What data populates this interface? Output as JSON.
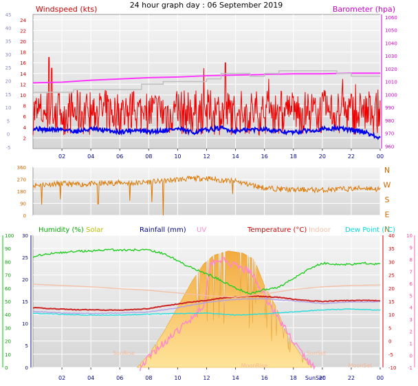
{
  "header": {
    "title": "24 hour graph day : 06 September 2019"
  },
  "chart_data": [
    {
      "type": "line",
      "name": "wind-baro",
      "left_label": "Windspeed (kts)",
      "right_label": "Barometer (hpa)",
      "left_ticks_gray": [
        -5,
        0,
        5,
        10,
        15,
        20,
        25,
        30,
        35,
        40,
        45
      ],
      "left_ticks_red": [
        2,
        4,
        6,
        8,
        10,
        12,
        14,
        16,
        18,
        20,
        22,
        24
      ],
      "right_ticks": [
        960,
        970,
        980,
        990,
        1000,
        1010,
        1020,
        1030,
        1040,
        1050,
        1060
      ],
      "x_ticks": [
        "02",
        "04",
        "06",
        "08",
        "10",
        "12",
        "14",
        "16",
        "18",
        "20",
        "22",
        "00"
      ],
      "x_range": [
        0,
        24
      ],
      "wind_range": [
        0,
        25
      ],
      "baro_range": [
        958,
        1062
      ],
      "series": [
        {
          "name": "Barometer",
          "axis": "baro",
          "color": "#ff33ff",
          "points": [
            [
              0,
              1009
            ],
            [
              2,
              1009.5
            ],
            [
              4,
              1011
            ],
            [
              6,
              1012
            ],
            [
              8,
              1013
            ],
            [
              10,
              1013.5
            ],
            [
              12,
              1014.5
            ],
            [
              14,
              1015
            ],
            [
              16,
              1015.5
            ],
            [
              18,
              1016
            ],
            [
              20,
              1016
            ],
            [
              22,
              1016.5
            ],
            [
              24,
              1016.5
            ]
          ]
        },
        {
          "name": "Gust",
          "axis": "wind",
          "color": "#c0c0c0",
          "points": [
            [
              0,
              10.5
            ],
            [
              2,
              10.5
            ],
            [
              2.8,
              11
            ],
            [
              4,
              11
            ],
            [
              6,
              11
            ],
            [
              7.5,
              12
            ],
            [
              9,
              12.5
            ],
            [
              11,
              12.5
            ],
            [
              12,
              13
            ],
            [
              13,
              14
            ],
            [
              14,
              14
            ],
            [
              15,
              13.5
            ],
            [
              16,
              14
            ],
            [
              17,
              14.5
            ],
            [
              19,
              14.5
            ],
            [
              21,
              14
            ],
            [
              22,
              13.5
            ],
            [
              24,
              13.5
            ]
          ]
        },
        {
          "name": "Wind average",
          "axis": "wind",
          "color": "#0000ee",
          "points": [
            [
              0,
              3.8
            ],
            [
              1,
              3.5
            ],
            [
              2,
              3.6
            ],
            [
              3,
              3.2
            ],
            [
              4,
              3.6
            ],
            [
              5,
              3.4
            ],
            [
              6,
              3.1
            ],
            [
              7,
              3.5
            ],
            [
              8,
              3.1
            ],
            [
              9,
              3.4
            ],
            [
              10,
              3.7
            ],
            [
              11,
              3.0
            ],
            [
              12,
              3.5
            ],
            [
              13,
              3.8
            ],
            [
              14,
              3.3
            ],
            [
              15,
              3.5
            ],
            [
              16,
              3.7
            ],
            [
              17,
              3.2
            ],
            [
              18,
              3.0
            ],
            [
              19,
              3.4
            ],
            [
              20,
              3.6
            ],
            [
              21,
              3.8
            ],
            [
              22,
              3.5
            ],
            [
              23,
              3.1
            ],
            [
              24,
              1.8
            ]
          ]
        }
      ],
      "wind_band": {
        "name": "Windspeed",
        "color": "#ee0000",
        "low": 2.5,
        "high": 11,
        "spikes": [
          [
            1.1,
            17
          ],
          [
            1.3,
            15
          ],
          [
            11.8,
            15
          ],
          [
            13.3,
            16
          ],
          [
            16.3,
            13
          ],
          [
            21.4,
            13
          ],
          [
            22.3,
            12
          ]
        ]
      }
    },
    {
      "type": "scatter",
      "name": "wind-direction",
      "y_ticks": [
        "0",
        "90",
        "180",
        "270",
        "360"
      ],
      "compass": [
        "N",
        "W",
        "S",
        "E",
        "N"
      ],
      "y_range": [
        0,
        360
      ],
      "color": "#dd7700",
      "points": [
        [
          0,
          225
        ],
        [
          1,
          232
        ],
        [
          2,
          238
        ],
        [
          3,
          230
        ],
        [
          4,
          235
        ],
        [
          5,
          240
        ],
        [
          6,
          245
        ],
        [
          7,
          240
        ],
        [
          8,
          250
        ],
        [
          9,
          255
        ],
        [
          10,
          268
        ],
        [
          11,
          275
        ],
        [
          12,
          278
        ],
        [
          13,
          262
        ],
        [
          14,
          255
        ],
        [
          15,
          230
        ],
        [
          16,
          205
        ],
        [
          17,
          198
        ],
        [
          18,
          190
        ],
        [
          19,
          192
        ],
        [
          20,
          188
        ],
        [
          21,
          195
        ],
        [
          22,
          198
        ],
        [
          23,
          205
        ],
        [
          24,
          192
        ]
      ],
      "outliers": [
        [
          0.6,
          80
        ],
        [
          1.9,
          120
        ],
        [
          4.5,
          85
        ],
        [
          6.7,
          110
        ],
        [
          8.2,
          100
        ],
        [
          9.0,
          0
        ],
        [
          13.8,
          160
        ]
      ]
    },
    {
      "type": "line",
      "name": "climate",
      "legend": [
        {
          "label": "Humidity (%)",
          "color": "#00aa00"
        },
        {
          "label": "Solar",
          "color": "#bbbb00"
        },
        {
          "label": "Rainfall (mm)",
          "color": "#000088"
        },
        {
          "label": "UV",
          "color": "#ff88cc"
        },
        {
          "label": "Temperature (°C)",
          "color": "#cc0000"
        },
        {
          "label": "Indoor",
          "color": "#f3c0a8"
        },
        {
          "label": "Dew Point (°C)",
          "color": "#00dddd"
        }
      ],
      "left_ticks_hum": [
        0,
        10,
        20,
        30,
        40,
        50,
        60,
        70,
        80,
        90,
        100
      ],
      "left_ticks_rain": [
        0,
        5,
        10,
        15,
        20,
        25,
        30
      ],
      "right_ticks_temp": [
        -10,
        -5,
        0,
        5,
        10,
        15,
        20,
        25,
        30,
        35,
        40
      ],
      "right_ticks_uv": [
        -1,
        0,
        1,
        2,
        3,
        4,
        5,
        6,
        7,
        8,
        9,
        10
      ],
      "x_ticks": [
        "02",
        "04",
        "06",
        "08",
        "10",
        "12",
        "14",
        "16",
        "18",
        "20",
        "22",
        "00"
      ],
      "x_range": [
        0,
        24
      ],
      "temp_range": [
        -10,
        40
      ],
      "hum_range": [
        0,
        100
      ],
      "annotations": [
        "SunRise",
        "SunSet",
        "MoonSet",
        "MoonRise",
        "SunSet"
      ],
      "series": [
        {
          "name": "Humidity",
          "axis": "hum",
          "color": "#22cc22",
          "points": [
            [
              0,
              84
            ],
            [
              1,
              86
            ],
            [
              2,
              87
            ],
            [
              3,
              88
            ],
            [
              4,
              88
            ],
            [
              5,
              89
            ],
            [
              6,
              89
            ],
            [
              7,
              89
            ],
            [
              8,
              89
            ],
            [
              9,
              86
            ],
            [
              10,
              81
            ],
            [
              11,
              75
            ],
            [
              12,
              71
            ],
            [
              13,
              66
            ],
            [
              14,
              60
            ],
            [
              15,
              56
            ],
            [
              16,
              59
            ],
            [
              17,
              61
            ],
            [
              18,
              67
            ],
            [
              19,
              74
            ],
            [
              20,
              79
            ],
            [
              21,
              78
            ],
            [
              22,
              78
            ],
            [
              23,
              79
            ],
            [
              24,
              78
            ]
          ]
        },
        {
          "name": "Temperature",
          "axis": "temp",
          "color": "#cc2222",
          "points": [
            [
              0,
              12.6
            ],
            [
              1,
              12.3
            ],
            [
              2,
              12.1
            ],
            [
              3,
              11.8
            ],
            [
              4,
              11.8
            ],
            [
              5,
              11.7
            ],
            [
              6,
              11.7
            ],
            [
              7,
              11.9
            ],
            [
              8,
              12.3
            ],
            [
              9,
              13.2
            ],
            [
              10,
              14.0
            ],
            [
              11,
              14.8
            ],
            [
              12,
              15.4
            ],
            [
              13,
              16.2
            ],
            [
              14,
              16.6
            ],
            [
              15,
              17.0
            ],
            [
              16,
              16.8
            ],
            [
              17,
              16.5
            ],
            [
              18,
              15.8
            ],
            [
              19,
              15.3
            ],
            [
              20,
              15.0
            ],
            [
              21,
              15.2
            ],
            [
              22,
              15.3
            ],
            [
              23,
              15.4
            ],
            [
              24,
              15.2
            ]
          ]
        },
        {
          "name": "Indoor",
          "axis": "temp",
          "color": "#f3c0a8",
          "points": [
            [
              0,
              21.5
            ],
            [
              2,
              21
            ],
            [
              4,
              20.5
            ],
            [
              6,
              19.8
            ],
            [
              8,
              19.2
            ],
            [
              10,
              18.2
            ],
            [
              12,
              17.2
            ],
            [
              14,
              16.6
            ],
            [
              16,
              17.8
            ],
            [
              18,
              19.5
            ],
            [
              20,
              20.5
            ],
            [
              22,
              21
            ],
            [
              24,
              21.2
            ]
          ]
        },
        {
          "name": "Dew Point",
          "axis": "temp",
          "color": "#22dddd",
          "points": [
            [
              0,
              10.5
            ],
            [
              2,
              10.1
            ],
            [
              4,
              9.8
            ],
            [
              6,
              9.8
            ],
            [
              8,
              10.2
            ],
            [
              10,
              10.4
            ],
            [
              12,
              10.6
            ],
            [
              14,
              9.8
            ],
            [
              16,
              10.3
            ],
            [
              18,
              11.0
            ],
            [
              20,
              11.8
            ],
            [
              22,
              12.1
            ],
            [
              24,
              11.7
            ]
          ]
        },
        {
          "name": "Feels like",
          "axis": "temp",
          "color": "#b0a0e8",
          "points": [
            [
              0,
              11.2
            ],
            [
              2,
              10.6
            ],
            [
              4,
              10.4
            ],
            [
              6,
              10.6
            ],
            [
              8,
              11.0
            ],
            [
              10,
              12.6
            ],
            [
              12,
              14.6
            ],
            [
              14,
              15.8
            ],
            [
              16,
              16.0
            ],
            [
              18,
              15.2
            ],
            [
              20,
              14.2
            ],
            [
              22,
              14.8
            ],
            [
              24,
              14.8
            ]
          ]
        }
      ],
      "solar": {
        "name": "Solar",
        "color": "#f5c050",
        "points": [
          [
            7.2,
            0
          ],
          [
            8,
            3
          ],
          [
            9,
            8
          ],
          [
            10,
            14
          ],
          [
            11,
            20
          ],
          [
            11.8,
            24
          ],
          [
            12.5,
            26
          ],
          [
            13.5,
            27
          ],
          [
            14.5,
            26.5
          ],
          [
            15.3,
            25
          ],
          [
            16,
            19
          ],
          [
            16.8,
            14
          ],
          [
            17.5,
            8
          ],
          [
            18.5,
            3
          ],
          [
            19.3,
            0
          ]
        ]
      },
      "uv": {
        "name": "UV",
        "color": "#ff88cc",
        "points": [
          [
            7.4,
            -1
          ],
          [
            8.5,
            0.5
          ],
          [
            10,
            2
          ],
          [
            11,
            3.2
          ],
          [
            11.8,
            4.2
          ],
          [
            12.3,
            7.8
          ],
          [
            13,
            8
          ],
          [
            14,
            7.4
          ],
          [
            15,
            7
          ],
          [
            16,
            5
          ],
          [
            17,
            3
          ],
          [
            18,
            1.2
          ],
          [
            19,
            -0.5
          ],
          [
            19.5,
            -1
          ]
        ]
      }
    }
  ]
}
